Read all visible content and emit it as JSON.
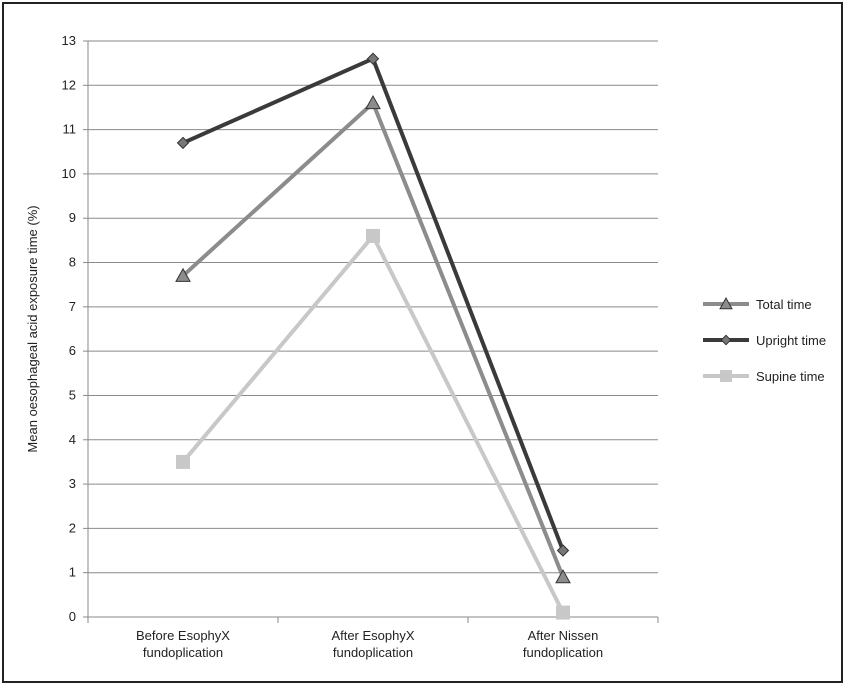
{
  "chart_data": {
    "type": "line",
    "title": "",
    "xlabel": "",
    "ylabel": "Mean oesophageal acid exposure time (%)",
    "ylim": [
      0,
      13
    ],
    "yticks": [
      0,
      1,
      2,
      3,
      4,
      5,
      6,
      7,
      8,
      9,
      10,
      11,
      12,
      13
    ],
    "categories": [
      [
        "Before EsophyX",
        "fundoplication"
      ],
      [
        "After EsophyX",
        "fundoplication"
      ],
      [
        "After Nissen",
        "fundoplication"
      ]
    ],
    "grid": true,
    "legend_position": "right",
    "series": [
      {
        "name": "Total time",
        "values": [
          7.7,
          11.6,
          0.9
        ],
        "color": "#8c8c8c",
        "marker": "triangle"
      },
      {
        "name": "Upright time",
        "values": [
          10.7,
          12.6,
          1.5
        ],
        "color": "#3a3a3a",
        "marker": "diamond"
      },
      {
        "name": "Supine time",
        "values": [
          3.5,
          8.6,
          0.1
        ],
        "color": "#c8c8c8",
        "marker": "square"
      }
    ]
  }
}
